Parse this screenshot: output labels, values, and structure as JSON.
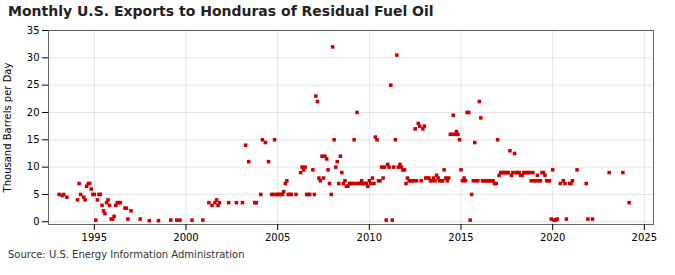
{
  "chart_data": {
    "type": "scatter",
    "title": "Monthly U.S. Exports to Honduras of Residual Fuel Oil",
    "ylabel": "Thousand Barrels per Day",
    "source": "Source: U.S. Energy Information Administration",
    "color": "#cc0000",
    "marker": "square",
    "grid": true,
    "xlim": [
      1992.5,
      2025.5
    ],
    "ylim": [
      -0.5,
      35
    ],
    "xticks": [
      1995,
      2000,
      2005,
      2010,
      2015,
      2020,
      2025
    ],
    "yticks": [
      0,
      5,
      10,
      15,
      20,
      25,
      30,
      35
    ],
    "x": [
      1993.08,
      1993.25,
      1993.33,
      1993.5,
      1994.08,
      1994.17,
      1994.25,
      1994.42,
      1994.5,
      1994.58,
      1994.67,
      1994.75,
      1994.83,
      1994.92,
      1995.0,
      1995.08,
      1995.17,
      1995.25,
      1995.33,
      1995.42,
      1995.5,
      1995.58,
      1995.67,
      1995.75,
      1995.83,
      1995.92,
      1996.0,
      1996.08,
      1996.17,
      1996.25,
      1996.33,
      1996.42,
      1996.67,
      1996.75,
      1996.83,
      1997.0,
      1997.5,
      1998.0,
      1998.5,
      1999.17,
      1999.5,
      1999.67,
      2000.33,
      2000.92,
      2001.25,
      2001.42,
      2001.58,
      2001.67,
      2001.75,
      2001.83,
      2002.33,
      2002.75,
      2003.08,
      2003.25,
      2003.42,
      2003.75,
      2003.83,
      2004.08,
      2004.17,
      2004.33,
      2004.5,
      2004.67,
      2004.75,
      2004.83,
      2004.92,
      2005.0,
      2005.08,
      2005.17,
      2005.25,
      2005.33,
      2005.42,
      2005.5,
      2005.58,
      2005.67,
      2005.75,
      2006.0,
      2006.25,
      2006.33,
      2006.42,
      2006.5,
      2006.58,
      2006.67,
      2006.75,
      2006.92,
      2007.0,
      2007.08,
      2007.17,
      2007.25,
      2007.33,
      2007.42,
      2007.5,
      2007.58,
      2007.67,
      2007.75,
      2007.83,
      2007.92,
      2008.0,
      2008.08,
      2008.17,
      2008.25,
      2008.33,
      2008.42,
      2008.5,
      2008.58,
      2008.67,
      2008.75,
      2008.83,
      2008.92,
      2009.0,
      2009.08,
      2009.17,
      2009.25,
      2009.33,
      2009.42,
      2009.5,
      2009.58,
      2009.67,
      2009.75,
      2009.83,
      2009.92,
      2010.0,
      2010.08,
      2010.17,
      2010.25,
      2010.33,
      2010.42,
      2010.5,
      2010.58,
      2010.67,
      2010.75,
      2010.83,
      2010.92,
      2011.0,
      2011.08,
      2011.17,
      2011.25,
      2011.33,
      2011.42,
      2011.5,
      2011.58,
      2011.67,
      2011.75,
      2011.83,
      2011.92,
      2012.0,
      2012.08,
      2012.17,
      2012.25,
      2012.33,
      2012.42,
      2012.5,
      2012.58,
      2012.67,
      2012.75,
      2012.83,
      2012.92,
      2013.0,
      2013.08,
      2013.17,
      2013.25,
      2013.33,
      2013.42,
      2013.5,
      2013.58,
      2013.67,
      2013.75,
      2013.83,
      2013.92,
      2014.0,
      2014.08,
      2014.17,
      2014.25,
      2014.33,
      2014.42,
      2014.5,
      2014.58,
      2014.67,
      2014.75,
      2014.83,
      2014.92,
      2015.0,
      2015.08,
      2015.17,
      2015.25,
      2015.33,
      2015.42,
      2015.5,
      2015.58,
      2015.67,
      2015.75,
      2015.83,
      2015.92,
      2016.0,
      2016.08,
      2016.17,
      2016.25,
      2016.33,
      2016.42,
      2016.5,
      2016.58,
      2016.67,
      2016.75,
      2016.83,
      2016.92,
      2017.0,
      2017.08,
      2017.17,
      2017.25,
      2017.33,
      2017.42,
      2017.5,
      2017.58,
      2017.67,
      2017.75,
      2017.83,
      2017.92,
      2018.0,
      2018.08,
      2018.17,
      2018.25,
      2018.33,
      2018.42,
      2018.5,
      2018.58,
      2018.67,
      2018.75,
      2018.83,
      2018.92,
      2019.0,
      2019.08,
      2019.17,
      2019.25,
      2019.33,
      2019.42,
      2019.5,
      2019.58,
      2019.67,
      2019.75,
      2019.83,
      2019.92,
      2020.0,
      2020.08,
      2020.17,
      2020.25,
      2020.42,
      2020.58,
      2020.67,
      2020.75,
      2020.92,
      2021.0,
      2021.08,
      2021.33,
      2021.83,
      2021.92,
      2022.17,
      2023.08,
      2023.83,
      2024.17
    ],
    "values": [
      5.0,
      4.8,
      5.0,
      4.5,
      4.0,
      7.0,
      5.0,
      4.5,
      4.0,
      6.5,
      7.0,
      7.0,
      6.0,
      5.0,
      5.0,
      0.3,
      4.0,
      5.0,
      5.0,
      3.0,
      2.0,
      1.5,
      3.5,
      4.0,
      3.0,
      0.5,
      0.5,
      1.0,
      3.0,
      3.5,
      3.5,
      3.5,
      2.5,
      2.5,
      0.5,
      2.0,
      0.5,
      0.2,
      0.2,
      0.3,
      0.3,
      0.3,
      0.3,
      0.3,
      3.5,
      3.0,
      3.5,
      4.0,
      3.0,
      3.5,
      3.5,
      3.5,
      3.5,
      14.0,
      11.0,
      3.5,
      3.5,
      5.0,
      15.0,
      14.5,
      11.0,
      5.0,
      5.0,
      15.0,
      5.0,
      5.0,
      5.0,
      5.0,
      5.0,
      5.5,
      7.0,
      7.5,
      5.0,
      5.0,
      5.0,
      5.0,
      9.0,
      10.0,
      9.5,
      10.0,
      5.0,
      5.0,
      5.0,
      9.5,
      5.0,
      23.0,
      22.0,
      8.0,
      7.5,
      12.0,
      8.0,
      12.0,
      11.5,
      9.5,
      7.0,
      5.0,
      32.0,
      15.0,
      10.0,
      11.0,
      7.0,
      12.0,
      9.0,
      7.0,
      7.5,
      6.5,
      6.5,
      7.0,
      7.0,
      7.0,
      15.0,
      7.0,
      20.0,
      7.0,
      7.0,
      7.5,
      7.0,
      7.0,
      7.0,
      6.5,
      7.5,
      7.0,
      8.0,
      7.0,
      15.5,
      15.0,
      7.5,
      7.5,
      10.0,
      8.0,
      10.0,
      0.3,
      10.5,
      10.0,
      25.0,
      0.3,
      10.0,
      15.0,
      30.5,
      10.0,
      10.5,
      10.0,
      9.5,
      9.5,
      7.0,
      8.0,
      7.5,
      7.5,
      7.5,
      7.5,
      17.0,
      7.5,
      18.0,
      17.5,
      7.5,
      17.0,
      17.5,
      8.0,
      8.0,
      8.0,
      7.5,
      7.5,
      8.0,
      7.5,
      8.5,
      8.0,
      7.5,
      7.5,
      7.5,
      9.5,
      8.0,
      7.5,
      8.0,
      16.0,
      16.0,
      19.5,
      16.0,
      16.5,
      16.0,
      15.0,
      9.5,
      7.5,
      8.0,
      7.5,
      20.0,
      20.0,
      0.3,
      5.0,
      7.5,
      14.5,
      7.5,
      7.5,
      22.0,
      19.0,
      7.5,
      7.5,
      7.5,
      7.5,
      7.5,
      7.5,
      7.5,
      7.5,
      7.0,
      7.0,
      15.0,
      8.5,
      9.0,
      9.0,
      9.0,
      9.0,
      9.0,
      9.0,
      13.0,
      8.5,
      9.0,
      12.5,
      9.0,
      9.0,
      9.0,
      8.5,
      8.5,
      9.0,
      9.0,
      9.0,
      9.0,
      9.0,
      7.5,
      9.0,
      7.5,
      7.5,
      8.5,
      7.5,
      7.5,
      9.0,
      9.0,
      8.5,
      7.5,
      7.5,
      7.5,
      0.5,
      9.5,
      0.3,
      0.3,
      0.5,
      7.0,
      7.5,
      7.0,
      0.5,
      7.0,
      7.0,
      7.5,
      9.5,
      7.0,
      0.5,
      0.5,
      9.0,
      9.0,
      3.5
    ]
  }
}
